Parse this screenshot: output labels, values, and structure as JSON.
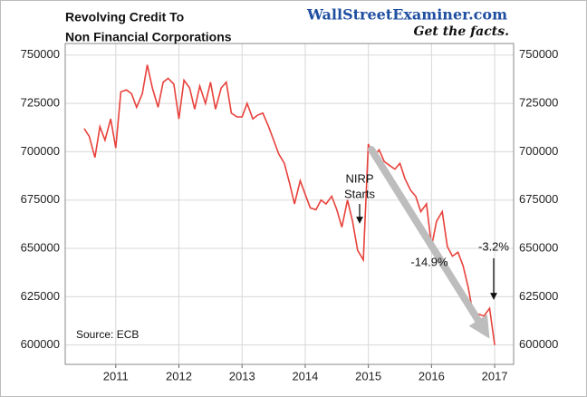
{
  "chart_data": {
    "type": "line",
    "title_lines": [
      "Revolving Credit To",
      "Non Financial Corporations"
    ],
    "brand": "WallStreetExaminer.com",
    "tagline": "Get the facts.",
    "source": "Source: ECB",
    "annotations": [
      "NIRP",
      "Starts",
      "-14.9%",
      "-3.2%"
    ],
    "xlim": [
      2010.2,
      2017.3
    ],
    "xticks": [
      2011,
      2012,
      2013,
      2014,
      2015,
      2016,
      2017
    ],
    "ylim": [
      590000,
      756000
    ],
    "yticks": [
      600000,
      625000,
      650000,
      675000,
      700000,
      725000,
      750000
    ],
    "grid": true,
    "x": [
      2010.5,
      2010.58,
      2010.67,
      2010.75,
      2010.83,
      2010.92,
      2011.0,
      2011.08,
      2011.17,
      2011.25,
      2011.33,
      2011.42,
      2011.5,
      2011.58,
      2011.67,
      2011.75,
      2011.83,
      2011.92,
      2012.0,
      2012.08,
      2012.17,
      2012.25,
      2012.33,
      2012.42,
      2012.5,
      2012.58,
      2012.67,
      2012.75,
      2012.83,
      2012.92,
      2013.0,
      2013.08,
      2013.17,
      2013.25,
      2013.33,
      2013.42,
      2013.5,
      2013.58,
      2013.67,
      2013.75,
      2013.83,
      2013.92,
      2014.0,
      2014.08,
      2014.17,
      2014.25,
      2014.33,
      2014.42,
      2014.5,
      2014.58,
      2014.67,
      2014.75,
      2014.83,
      2014.92,
      2015.0,
      2015.08,
      2015.17,
      2015.25,
      2015.33,
      2015.42,
      2015.5,
      2015.58,
      2015.67,
      2015.75,
      2015.83,
      2015.92,
      2016.0,
      2016.08,
      2016.17,
      2016.25,
      2016.33,
      2016.42,
      2016.5,
      2016.58,
      2016.67,
      2016.75,
      2016.83,
      2016.92,
      2017.0
    ],
    "series": [
      {
        "name": "Revolving Credit",
        "color": "#e8413b",
        "values": [
          712000,
          708000,
          697000,
          713000,
          706000,
          717000,
          702000,
          731000,
          732000,
          730000,
          723000,
          730000,
          745000,
          733000,
          723000,
          736000,
          738000,
          735000,
          717000,
          737000,
          733000,
          722000,
          734000,
          725000,
          736000,
          722000,
          733000,
          736000,
          720000,
          718000,
          718000,
          725000,
          717000,
          719000,
          720000,
          713000,
          706000,
          699000,
          694000,
          684000,
          673000,
          685000,
          678000,
          671000,
          670000,
          675000,
          673000,
          677000,
          670000,
          661000,
          675000,
          664000,
          649000,
          644000,
          704000,
          697000,
          701000,
          695000,
          693000,
          691000,
          694000,
          686000,
          680000,
          677000,
          669000,
          673000,
          651000,
          664000,
          669000,
          651000,
          646000,
          648000,
          641000,
          630000,
          614000,
          616000,
          615000,
          619000,
          600000
        ]
      }
    ]
  }
}
